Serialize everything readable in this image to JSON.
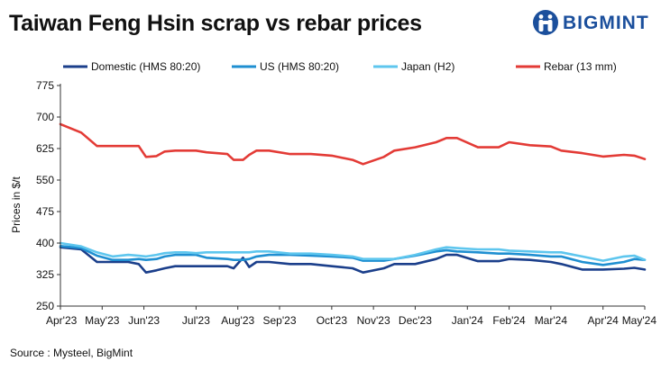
{
  "header": {
    "title": "Taiwan Feng Hsin scrap vs rebar prices",
    "brand": "BIGMINT"
  },
  "footer": {
    "source": "Source : Mysteel, BigMint"
  },
  "chart_data": {
    "type": "line",
    "title": "Taiwan Feng Hsin scrap vs rebar prices",
    "xlabel": "",
    "ylabel": "Prices in $/t",
    "ylim": [
      250,
      775
    ],
    "yticks": [
      250,
      325,
      400,
      475,
      550,
      625,
      700,
      775
    ],
    "ytick_labels": [
      "250",
      "325",
      "400",
      "475",
      "550",
      "625",
      "700",
      "775"
    ],
    "xlim": [
      0,
      56
    ],
    "xticks": [
      0,
      4,
      8,
      13,
      17,
      21,
      26,
      30,
      34,
      39,
      43,
      47,
      52,
      56
    ],
    "xtick_labels": [
      "Apr'23",
      "May'23",
      "Jun'23",
      "Jul'23",
      "Aug'23",
      "Sep'23",
      "Oct'23",
      "Nov'23",
      "Dec'23",
      "Jan'24",
      "Feb'24",
      "Mar'24",
      "Apr'24",
      "May'24"
    ],
    "legend_position": "top",
    "grid": false,
    "series": [
      {
        "name": "Domestic (HMS 80:20)",
        "color": "#1b3f8b",
        "x": [
          0,
          2,
          3.5,
          5,
          6.5,
          7.5,
          8.2,
          9.2,
          10,
          11,
          12,
          13,
          14,
          16,
          16.6,
          17.5,
          18.1,
          18.8,
          20,
          22,
          24,
          26,
          28,
          29,
          31,
          32,
          34,
          36,
          37,
          38,
          40,
          42,
          43,
          45,
          47,
          48,
          50,
          52,
          54,
          55,
          56
        ],
        "values": [
          390,
          385,
          355,
          355,
          355,
          350,
          330,
          335,
          340,
          345,
          345,
          345,
          345,
          345,
          340,
          365,
          343,
          355,
          355,
          350,
          350,
          345,
          340,
          330,
          340,
          350,
          350,
          362,
          372,
          372,
          357,
          357,
          362,
          360,
          355,
          350,
          337,
          337,
          339,
          341,
          337
        ]
      },
      {
        "name": "US (HMS 80:20)",
        "color": "#1f8fd1",
        "x": [
          0,
          2,
          3.5,
          5,
          6.5,
          7.5,
          8.2,
          9.2,
          10,
          11,
          12,
          13,
          14,
          16,
          16.6,
          17.5,
          18.1,
          18.8,
          20,
          22,
          24,
          26,
          28,
          29,
          31,
          32,
          34,
          36,
          37,
          38,
          40,
          42,
          43,
          45,
          47,
          48,
          50,
          52,
          54,
          55,
          56
        ],
        "values": [
          393,
          388,
          370,
          360,
          360,
          362,
          360,
          362,
          368,
          372,
          372,
          372,
          365,
          362,
          360,
          360,
          362,
          368,
          372,
          372,
          370,
          368,
          365,
          358,
          358,
          362,
          370,
          380,
          383,
          380,
          378,
          375,
          375,
          372,
          368,
          368,
          355,
          348,
          355,
          362,
          360
        ]
      },
      {
        "name": "Japan (H2)",
        "color": "#5ec6ee",
        "x": [
          0,
          2,
          3.5,
          5,
          6.5,
          7.5,
          8.2,
          9.2,
          10,
          11,
          12,
          13,
          14,
          16,
          16.6,
          17.5,
          18.1,
          18.8,
          20,
          22,
          24,
          26,
          28,
          29,
          31,
          32,
          34,
          36,
          37,
          38,
          40,
          42,
          43,
          45,
          47,
          48,
          50,
          52,
          54,
          55,
          56
        ],
        "values": [
          400,
          392,
          378,
          368,
          372,
          370,
          368,
          372,
          376,
          378,
          378,
          376,
          378,
          378,
          378,
          378,
          378,
          380,
          380,
          375,
          375,
          372,
          368,
          362,
          362,
          362,
          372,
          385,
          390,
          388,
          385,
          385,
          382,
          380,
          378,
          378,
          368,
          358,
          368,
          370,
          360
        ]
      },
      {
        "name": "Rebar (13 mm)",
        "color": "#e33b36",
        "x": [
          0,
          2,
          3.5,
          5,
          6.5,
          7.5,
          8.2,
          9.2,
          10,
          11,
          12,
          13,
          14,
          16,
          16.6,
          17.5,
          18.1,
          18.8,
          20,
          22,
          24,
          26,
          28,
          29,
          31,
          32,
          34,
          36,
          37,
          38,
          40,
          42,
          43,
          45,
          47,
          48,
          50,
          52,
          54,
          55,
          56
        ],
        "values": [
          683,
          663,
          631,
          631,
          631,
          631,
          605,
          607,
          618,
          620,
          620,
          620,
          616,
          612,
          598,
          598,
          610,
          620,
          620,
          612,
          612,
          608,
          598,
          588,
          605,
          620,
          628,
          640,
          650,
          650,
          628,
          628,
          640,
          633,
          630,
          620,
          614,
          606,
          610,
          608,
          600
        ]
      }
    ]
  }
}
